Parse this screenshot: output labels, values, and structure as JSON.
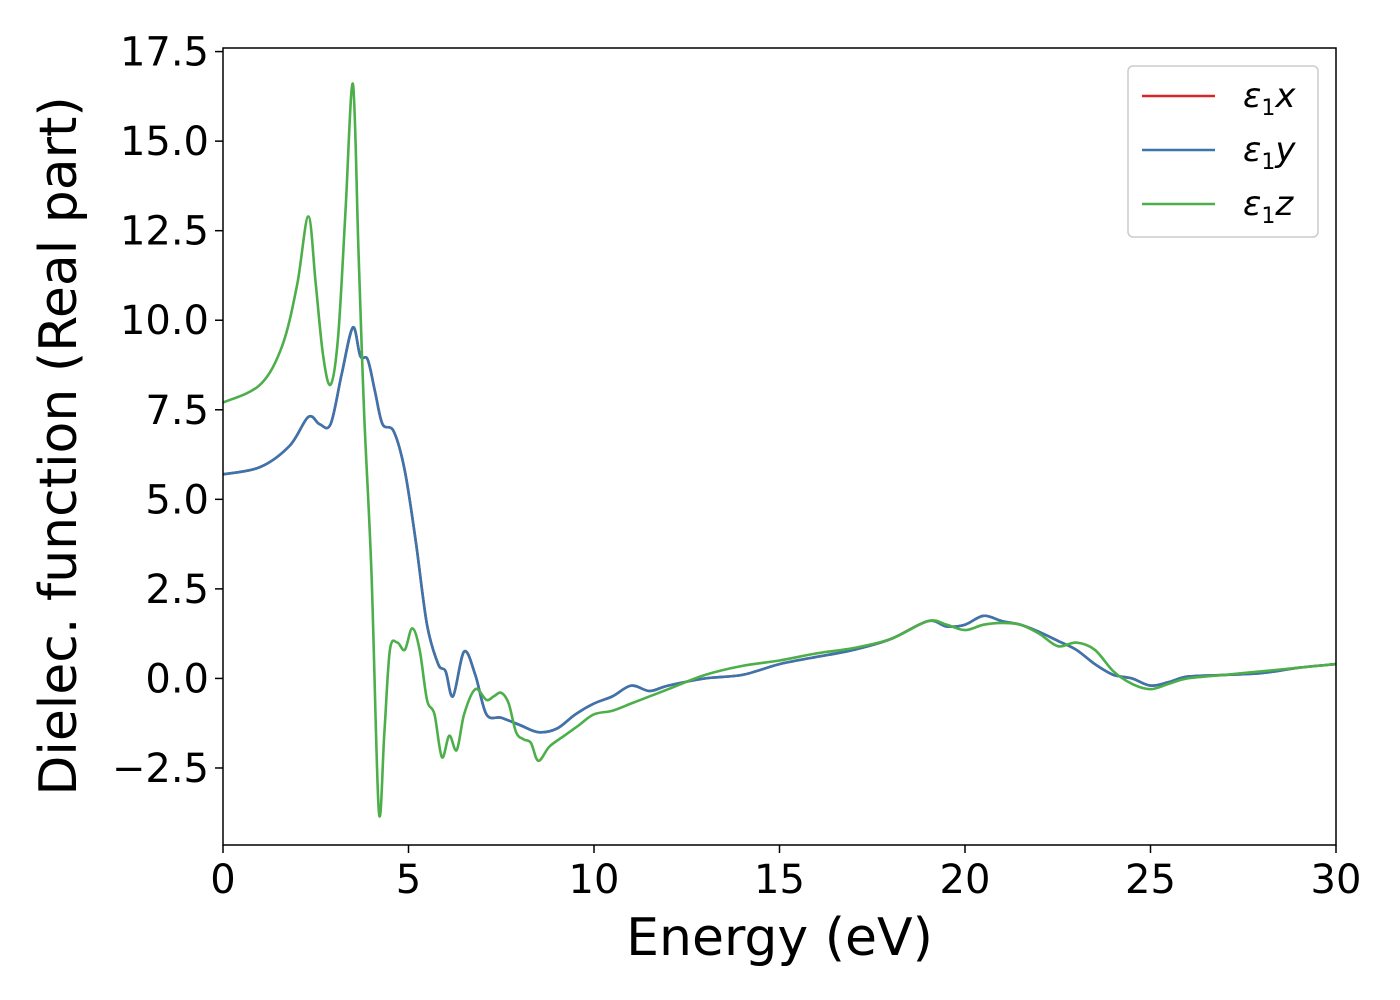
{
  "chart_data": {
    "type": "line",
    "xlabel": "Energy (eV)",
    "ylabel": "Dielec. function (Real part)",
    "xlim": [
      0,
      30
    ],
    "ylim": [
      -4.65,
      17.6
    ],
    "xticks": [
      0,
      5,
      10,
      15,
      20,
      25,
      30
    ],
    "xtick_labels": [
      "0",
      "5",
      "10",
      "15",
      "20",
      "25",
      "30"
    ],
    "yticks": [
      -2.5,
      0.0,
      2.5,
      5.0,
      7.5,
      10.0,
      12.5,
      15.0,
      17.5
    ],
    "ytick_labels": [
      "−2.5",
      "0.0",
      "2.5",
      "5.0",
      "7.5",
      "10.0",
      "12.5",
      "15.0",
      "17.5"
    ],
    "grid": false,
    "legend_position": "top-right",
    "series": [
      {
        "name": "ε₁x",
        "legend_main": "ε",
        "legend_sub": "1",
        "legend_tail": "x",
        "color": "#d62728",
        "x": [
          0,
          1.0,
          1.8,
          2.3,
          2.6,
          2.9,
          3.2,
          3.5,
          3.7,
          3.9,
          4.1,
          4.3,
          4.6,
          4.9,
          5.2,
          5.5,
          5.8,
          6.0,
          6.2,
          6.5,
          6.8,
          7.1,
          7.5,
          8.0,
          8.5,
          9.0,
          9.5,
          10.0,
          10.5,
          11.0,
          11.5,
          12.0,
          13.0,
          14.0,
          15.0,
          16.0,
          17.0,
          18.0,
          19.0,
          19.5,
          20.0,
          20.5,
          21.0,
          21.5,
          22.0,
          22.5,
          23.0,
          23.5,
          24.0,
          24.5,
          25.0,
          25.5,
          26.0,
          27.0,
          28.0,
          29.0,
          30.0
        ],
        "y": [
          5.7,
          5.9,
          6.5,
          7.3,
          7.1,
          7.1,
          8.5,
          9.8,
          9.0,
          8.9,
          8.0,
          7.1,
          6.9,
          5.8,
          3.8,
          1.5,
          0.4,
          0.2,
          -0.5,
          0.75,
          0.1,
          -1.0,
          -1.1,
          -1.3,
          -1.5,
          -1.4,
          -1.0,
          -0.7,
          -0.5,
          -0.2,
          -0.35,
          -0.2,
          0.0,
          0.1,
          0.4,
          0.6,
          0.8,
          1.1,
          1.6,
          1.45,
          1.5,
          1.75,
          1.6,
          1.5,
          1.3,
          1.05,
          0.8,
          0.4,
          0.1,
          0.0,
          -0.2,
          -0.1,
          0.05,
          0.1,
          0.15,
          0.3,
          0.4
        ]
      },
      {
        "name": "ε₁y",
        "legend_main": "ε",
        "legend_sub": "1",
        "legend_tail": "y",
        "color": "#3a75ae",
        "x": [
          0,
          1.0,
          1.8,
          2.3,
          2.6,
          2.9,
          3.2,
          3.5,
          3.7,
          3.9,
          4.1,
          4.3,
          4.6,
          4.9,
          5.2,
          5.5,
          5.8,
          6.0,
          6.2,
          6.5,
          6.8,
          7.1,
          7.5,
          8.0,
          8.5,
          9.0,
          9.5,
          10.0,
          10.5,
          11.0,
          11.5,
          12.0,
          13.0,
          14.0,
          15.0,
          16.0,
          17.0,
          18.0,
          19.0,
          19.5,
          20.0,
          20.5,
          21.0,
          21.5,
          22.0,
          22.5,
          23.0,
          23.5,
          24.0,
          24.5,
          25.0,
          25.5,
          26.0,
          27.0,
          28.0,
          29.0,
          30.0
        ],
        "y": [
          5.7,
          5.9,
          6.5,
          7.3,
          7.1,
          7.1,
          8.5,
          9.8,
          9.0,
          8.9,
          8.0,
          7.1,
          6.9,
          5.8,
          3.8,
          1.5,
          0.4,
          0.2,
          -0.5,
          0.75,
          0.1,
          -1.0,
          -1.1,
          -1.3,
          -1.5,
          -1.4,
          -1.0,
          -0.7,
          -0.5,
          -0.2,
          -0.35,
          -0.2,
          0.0,
          0.1,
          0.4,
          0.6,
          0.8,
          1.1,
          1.6,
          1.45,
          1.5,
          1.75,
          1.6,
          1.5,
          1.3,
          1.05,
          0.8,
          0.4,
          0.1,
          0.0,
          -0.2,
          -0.1,
          0.05,
          0.1,
          0.15,
          0.3,
          0.4
        ]
      },
      {
        "name": "ε₁z",
        "legend_main": "ε",
        "legend_sub": "1",
        "legend_tail": "z",
        "color": "#4daf4a",
        "x": [
          0,
          1.0,
          1.6,
          2.0,
          2.3,
          2.5,
          2.7,
          2.9,
          3.1,
          3.3,
          3.5,
          3.65,
          3.8,
          4.0,
          4.2,
          4.35,
          4.5,
          4.7,
          4.9,
          5.1,
          5.3,
          5.5,
          5.7,
          5.9,
          6.1,
          6.3,
          6.5,
          6.8,
          7.1,
          7.3,
          7.5,
          7.7,
          7.9,
          8.1,
          8.3,
          8.5,
          8.8,
          9.2,
          9.6,
          10.0,
          10.5,
          11.0,
          11.5,
          12.0,
          13.0,
          14.0,
          15.0,
          16.0,
          17.0,
          18.0,
          19.0,
          19.5,
          20.0,
          20.5,
          21.0,
          21.5,
          22.0,
          22.5,
          23.0,
          23.5,
          24.0,
          24.5,
          25.0,
          25.5,
          26.0,
          27.0,
          28.0,
          29.0,
          30.0
        ],
        "y": [
          7.7,
          8.2,
          9.3,
          11.0,
          12.9,
          11.0,
          9.0,
          8.2,
          9.5,
          13.0,
          16.6,
          12.0,
          7.5,
          3.0,
          -3.7,
          -1.5,
          0.8,
          1.0,
          0.8,
          1.4,
          0.8,
          -0.6,
          -1.0,
          -2.2,
          -1.6,
          -2.0,
          -1.0,
          -0.3,
          -0.6,
          -0.5,
          -0.4,
          -0.7,
          -1.5,
          -1.7,
          -1.8,
          -2.3,
          -1.9,
          -1.6,
          -1.3,
          -1.0,
          -0.9,
          -0.7,
          -0.5,
          -0.3,
          0.1,
          0.35,
          0.5,
          0.7,
          0.85,
          1.1,
          1.6,
          1.5,
          1.35,
          1.5,
          1.55,
          1.5,
          1.25,
          0.9,
          1.0,
          0.8,
          0.2,
          -0.15,
          -0.3,
          -0.15,
          0.0,
          0.1,
          0.2,
          0.3,
          0.4
        ]
      }
    ]
  }
}
